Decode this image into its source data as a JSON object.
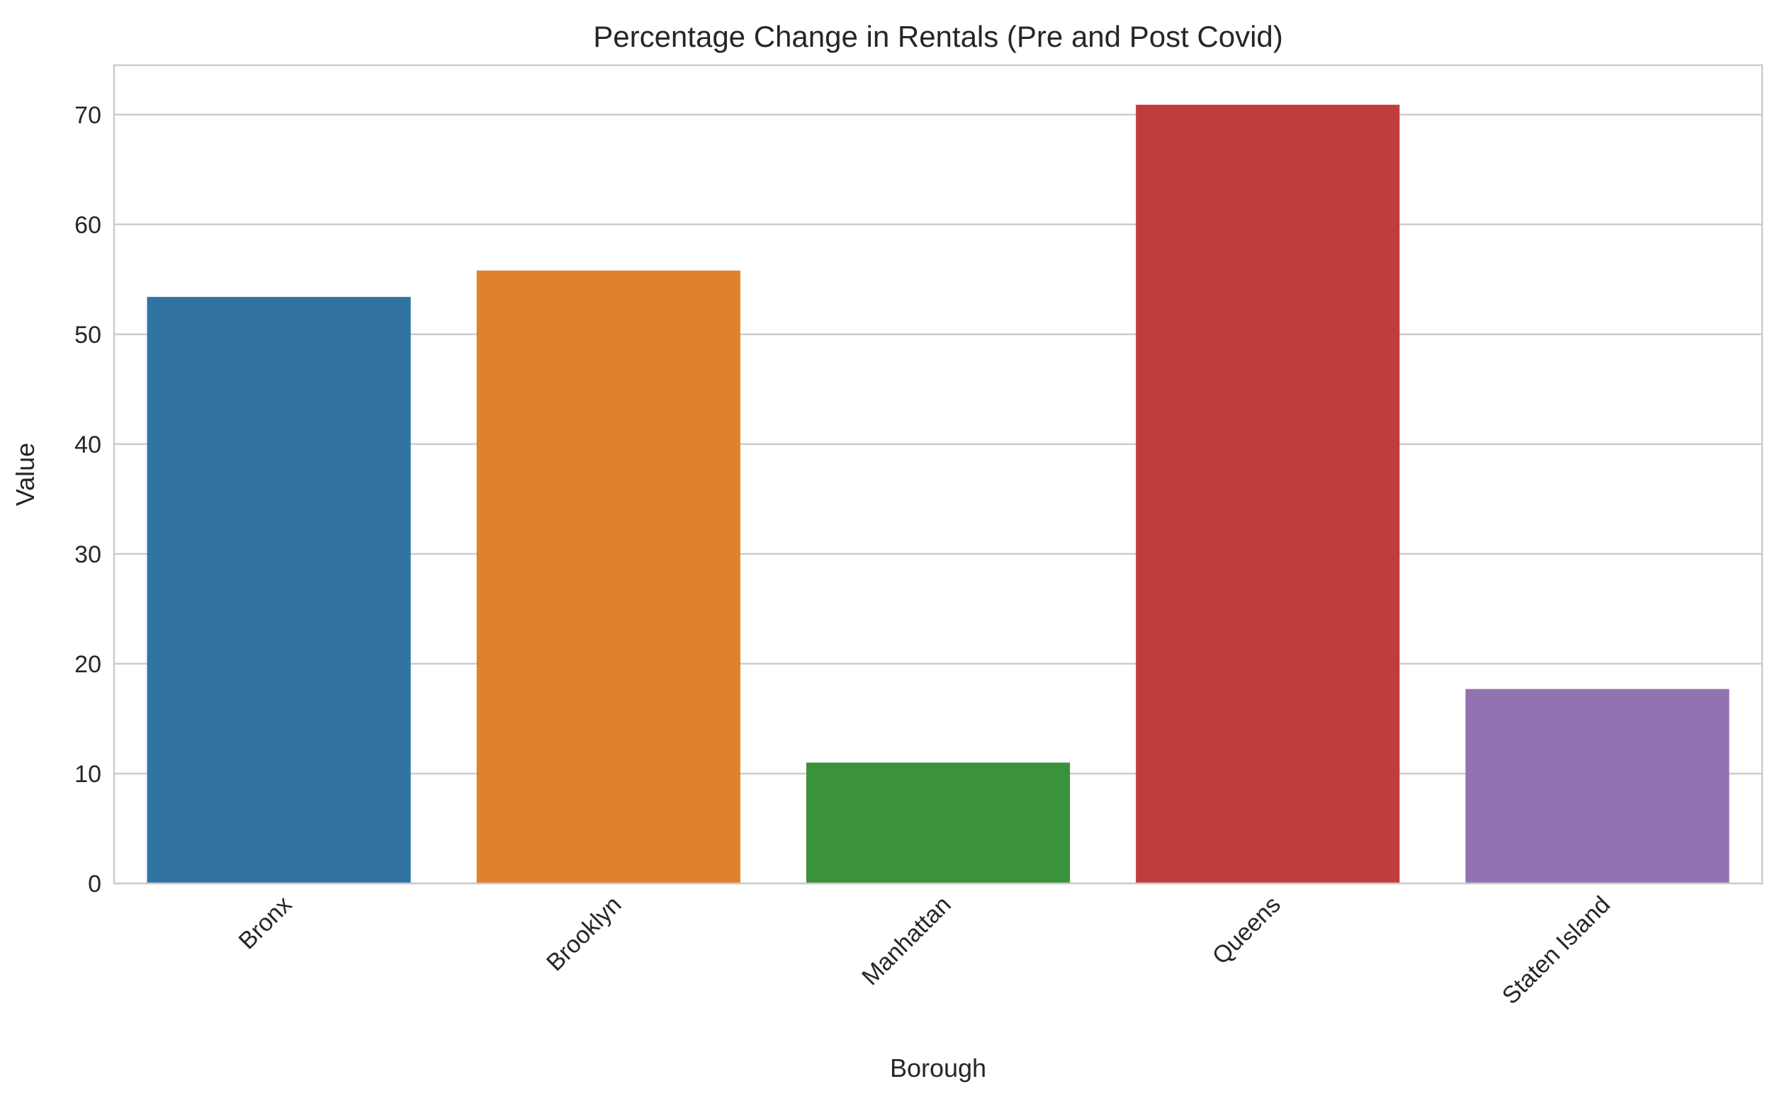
{
  "chart_data": {
    "type": "bar",
    "title": "Percentage Change in Rentals (Pre and Post Covid)",
    "xlabel": "Borough",
    "ylabel": "Value",
    "categories": [
      "Bronx",
      "Brooklyn",
      "Manhattan",
      "Queens",
      "Staten Island"
    ],
    "values": [
      53.4,
      55.8,
      11.0,
      70.9,
      17.7
    ],
    "colors": [
      "#3274a1",
      "#e1812c",
      "#3a923a",
      "#c03d3e",
      "#9372b2"
    ],
    "ylim": [
      0,
      74.5
    ],
    "yticks": [
      0,
      10,
      20,
      30,
      40,
      50,
      60,
      70
    ],
    "grid": "horizontal",
    "legend": "none",
    "xtick_rotation": "45 degrees"
  }
}
